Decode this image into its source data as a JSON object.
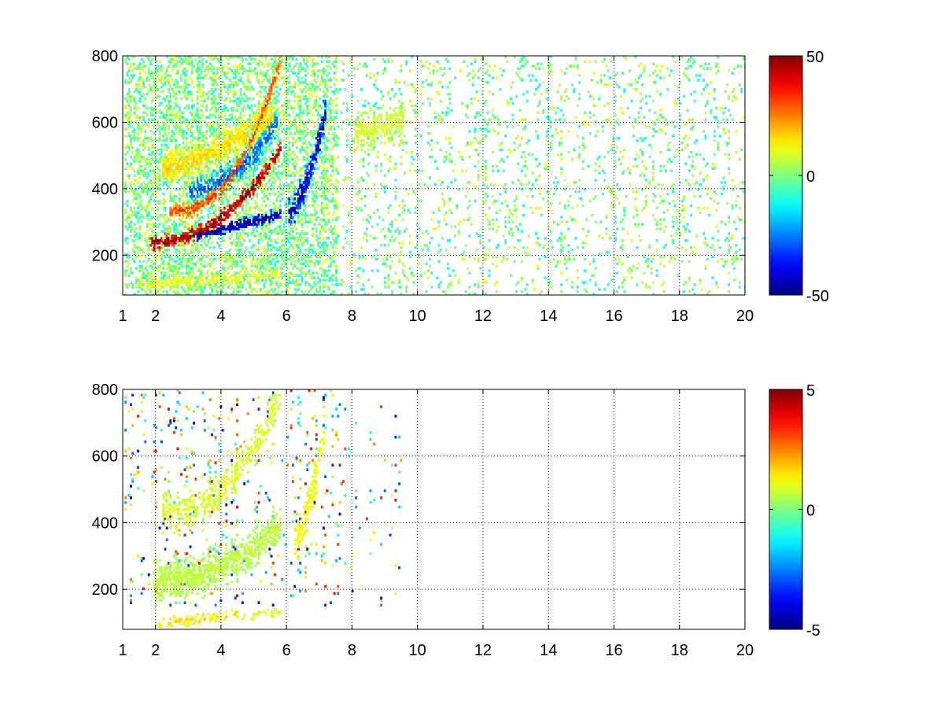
{
  "chart_data": [
    {
      "type": "heatmap",
      "title": "",
      "xlabel": "",
      "ylabel": "",
      "xlim": [
        1,
        20
      ],
      "ylim": [
        80,
        800
      ],
      "x_ticks": [
        1,
        2,
        4,
        6,
        8,
        10,
        12,
        14,
        16,
        18,
        20
      ],
      "y_ticks": [
        200,
        400,
        600,
        800
      ],
      "grid": true,
      "colormap": "jet",
      "clim": [
        -50,
        50
      ],
      "colorbar_ticks": [
        -50,
        0,
        50
      ],
      "features": [
        {
          "shape": "band",
          "value": 45,
          "x_range": [
            1.8,
            5.8
          ],
          "y_start": 235,
          "y_end": 520,
          "curve": 2.2,
          "width": 26,
          "density": 0.95
        },
        {
          "shape": "band",
          "value": -45,
          "x_range": [
            3.2,
            5.8
          ],
          "y_start": 255,
          "y_end": 320,
          "curve": 1.0,
          "width": 22,
          "density": 0.95
        },
        {
          "shape": "band",
          "value": 28,
          "x_range": [
            2.4,
            5.8
          ],
          "y_start": 330,
          "y_end": 790,
          "curve": 2.5,
          "width": 30,
          "density": 0.9
        },
        {
          "shape": "band",
          "value": 15,
          "x_range": [
            2.2,
            5.6
          ],
          "y_start": 460,
          "y_end": 620,
          "curve": 1.5,
          "width": 55,
          "density": 0.85
        },
        {
          "shape": "band",
          "value": -25,
          "x_range": [
            3.0,
            5.7
          ],
          "y_start": 390,
          "y_end": 600,
          "curve": 2.0,
          "width": 50,
          "density": 0.8
        },
        {
          "shape": "band",
          "value": -38,
          "x_range": [
            6.0,
            7.2
          ],
          "y_start": 330,
          "y_end": 650,
          "curve": 1.8,
          "width": 60,
          "density": 0.9
        },
        {
          "shape": "band",
          "value": 10,
          "x_range": [
            1.4,
            5.8
          ],
          "y_start": 110,
          "y_end": 140,
          "curve": 1.0,
          "width": 25,
          "density": 0.6
        },
        {
          "shape": "band",
          "value": 8,
          "x_range": [
            8.0,
            9.6
          ],
          "y_start": 560,
          "y_end": 600,
          "curve": 1.0,
          "width": 70,
          "density": 0.55
        }
      ],
      "noise": {
        "x_range": [
          1,
          20
        ],
        "y_range": [
          80,
          800
        ],
        "density_near": 0.35,
        "density_far": 0.08,
        "amplitude": 12
      }
    },
    {
      "type": "heatmap",
      "title": "",
      "xlabel": "",
      "ylabel": "",
      "xlim": [
        1,
        20
      ],
      "ylim": [
        80,
        800
      ],
      "x_ticks": [
        1,
        2,
        4,
        6,
        8,
        10,
        12,
        14,
        16,
        18,
        20
      ],
      "y_ticks": [
        200,
        400,
        600,
        800
      ],
      "grid": true,
      "colormap": "jet",
      "clim": [
        -5,
        5
      ],
      "colorbar_ticks": [
        -5,
        0,
        5
      ],
      "features": [
        {
          "shape": "band",
          "value": 0.6,
          "x_range": [
            1.9,
            5.8
          ],
          "y_start": 220,
          "y_end": 390,
          "curve": 2.0,
          "width": 75,
          "density": 0.75
        },
        {
          "shape": "band",
          "value": 0.9,
          "x_range": [
            2.2,
            5.8
          ],
          "y_start": 430,
          "y_end": 790,
          "curve": 2.4,
          "width": 70,
          "density": 0.5
        },
        {
          "shape": "band",
          "value": 1.2,
          "x_range": [
            6.2,
            7.1
          ],
          "y_start": 340,
          "y_end": 660,
          "curve": 1.6,
          "width": 70,
          "density": 0.7
        },
        {
          "shape": "band",
          "value": 1.5,
          "x_range": [
            2.0,
            4.5
          ],
          "y_start": 95,
          "y_end": 120,
          "curve": 1.0,
          "width": 20,
          "density": 0.55
        },
        {
          "shape": "band",
          "value": 1.0,
          "x_range": [
            4.5,
            5.8
          ],
          "y_start": 110,
          "y_end": 130,
          "curve": 1.0,
          "width": 18,
          "density": 0.5
        }
      ],
      "noise": {
        "x_range": [
          1,
          9.5
        ],
        "y_range": [
          150,
          800
        ],
        "density_near": 0.04,
        "density_far": 0.01,
        "amplitude": 4
      }
    }
  ]
}
